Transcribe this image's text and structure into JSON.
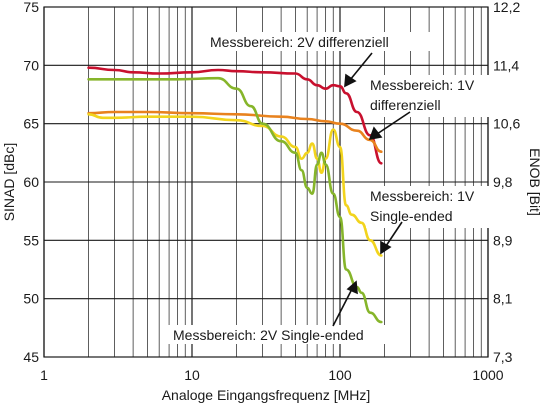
{
  "chart_data": {
    "type": "line",
    "xlabel": "Analoge Eingangsfrequenz [MHz]",
    "ylabel": "SINAD [dBc]",
    "y2label": "ENOB [Bit]",
    "xscale": "log",
    "xlim": [
      1,
      1000
    ],
    "ylim": [
      45,
      75
    ],
    "grid": true,
    "x_ticks": [
      {
        "value": 1,
        "label": "1"
      },
      {
        "value": 10,
        "label": "10"
      },
      {
        "value": 100,
        "label": "100"
      },
      {
        "value": 1000,
        "label": "1000"
      }
    ],
    "y_ticks": [
      {
        "value": 45,
        "label": "45"
      },
      {
        "value": 50,
        "label": "50"
      },
      {
        "value": 55,
        "label": "55"
      },
      {
        "value": 60,
        "label": "60"
      },
      {
        "value": 65,
        "label": "65"
      },
      {
        "value": 70,
        "label": "70"
      },
      {
        "value": 75,
        "label": "75"
      }
    ],
    "y2_ticks": [
      {
        "value": 45,
        "label": "7,3"
      },
      {
        "value": 50,
        "label": "8,1"
      },
      {
        "value": 55,
        "label": "8,9"
      },
      {
        "value": 60,
        "label": "9,8"
      },
      {
        "value": 65,
        "label": "10,6"
      },
      {
        "value": 70,
        "label": "11,4"
      },
      {
        "value": 75,
        "label": "12,2"
      }
    ],
    "series": [
      {
        "name": "Messbereich: 2V differenziell",
        "color": "#c8102e",
        "points": [
          [
            2,
            69.8
          ],
          [
            3,
            69.6
          ],
          [
            4,
            69.4
          ],
          [
            6,
            69.3
          ],
          [
            10,
            69.4
          ],
          [
            15,
            69.6
          ],
          [
            20,
            69.5
          ],
          [
            30,
            69.4
          ],
          [
            50,
            69.3
          ],
          [
            60,
            68.8
          ],
          [
            70,
            68.3
          ],
          [
            80,
            68.0
          ],
          [
            90,
            68.3
          ],
          [
            100,
            68.2
          ],
          [
            110,
            67.6
          ],
          [
            130,
            66.0
          ],
          [
            160,
            64.0
          ],
          [
            190,
            61.6
          ]
        ]
      },
      {
        "name": "Messbereich: 1V differenziell",
        "color": "#e8821e",
        "points": [
          [
            2,
            65.9
          ],
          [
            3,
            66.0
          ],
          [
            5,
            66.0
          ],
          [
            10,
            65.9
          ],
          [
            20,
            65.8
          ],
          [
            40,
            65.6
          ],
          [
            60,
            65.4
          ],
          [
            80,
            65.2
          ],
          [
            100,
            65.0
          ],
          [
            130,
            64.4
          ],
          [
            160,
            63.6
          ],
          [
            190,
            62.6
          ]
        ]
      },
      {
        "name": "Messbereich: 1V Single-ended",
        "color": "#f2d41d",
        "points": [
          [
            2,
            65.8
          ],
          [
            2.5,
            65.5
          ],
          [
            3,
            65.5
          ],
          [
            5,
            65.6
          ],
          [
            10,
            65.6
          ],
          [
            20,
            65.3
          ],
          [
            30,
            64.8
          ],
          [
            40,
            63.9
          ],
          [
            50,
            63.0
          ],
          [
            55,
            62.0
          ],
          [
            60,
            62.5
          ],
          [
            65,
            63.3
          ],
          [
            70,
            62.0
          ],
          [
            75,
            60.8
          ],
          [
            80,
            62.0
          ],
          [
            90,
            64.5
          ],
          [
            100,
            63.0
          ],
          [
            110,
            58.0
          ],
          [
            120,
            57.2
          ],
          [
            140,
            56.5
          ],
          [
            160,
            55.0
          ],
          [
            190,
            53.7
          ]
        ]
      },
      {
        "name": "Messbereich: 2V Single-ended",
        "color": "#86b52a",
        "points": [
          [
            2,
            68.8
          ],
          [
            3,
            68.8
          ],
          [
            5,
            68.8
          ],
          [
            8,
            68.8
          ],
          [
            15,
            68.9
          ],
          [
            20,
            68.0
          ],
          [
            25,
            66.5
          ],
          [
            30,
            65.0
          ],
          [
            40,
            63.5
          ],
          [
            50,
            62.5
          ],
          [
            55,
            61.0
          ],
          [
            60,
            59.5
          ],
          [
            65,
            59.0
          ],
          [
            70,
            61.5
          ],
          [
            75,
            62.5
          ],
          [
            80,
            61.5
          ],
          [
            90,
            59.0
          ],
          [
            100,
            57.0
          ],
          [
            110,
            52.5
          ],
          [
            130,
            51.0
          ],
          [
            140,
            50.5
          ],
          [
            160,
            48.8
          ],
          [
            190,
            48.0
          ]
        ]
      }
    ],
    "annotations": [
      {
        "text": "Messbereich: 2V differenziell"
      },
      {
        "text": "Messbereich: 1V"
      },
      {
        "text": "differenziell"
      },
      {
        "text": "Messbereich: 1V"
      },
      {
        "text": "Single-ended"
      },
      {
        "text": "Messbereich: 2V Single-ended"
      }
    ]
  }
}
